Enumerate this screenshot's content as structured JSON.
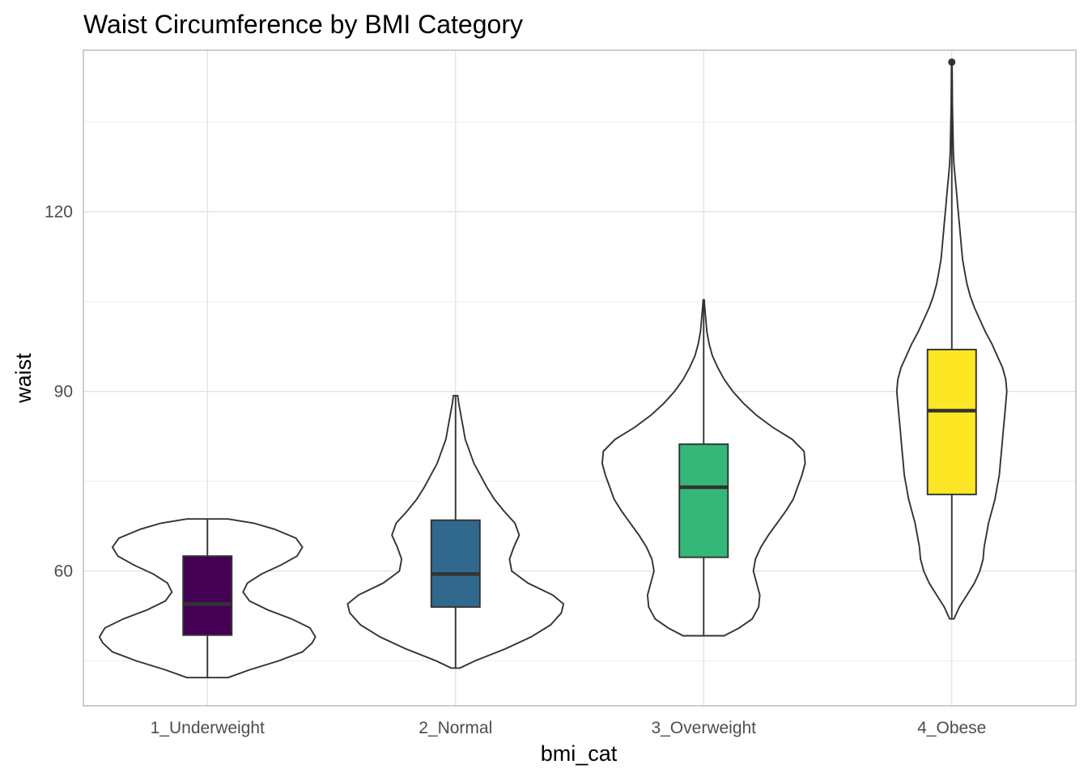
{
  "chart_data": {
    "type": "violin",
    "title": "Waist Circumference by BMI Category",
    "xlabel": "bmi_cat",
    "ylabel": "waist",
    "categories": [
      "1_Underweight",
      "2_Normal",
      "3_Overweight",
      "4_Obese"
    ],
    "ylim": [
      37.5,
      147
    ],
    "y_ticks": [
      60,
      90,
      120
    ],
    "y_tick_labels": [
      "60",
      "90",
      "120"
    ],
    "grid": true,
    "legend": "none",
    "groups": [
      {
        "category": "1_Underweight",
        "fill": "#440154",
        "min": 42.2,
        "q1": 49.3,
        "median": 54.5,
        "q3": 62.5,
        "max": 68.7,
        "outliers": [],
        "density": [
          [
            42.2,
            0.19
          ],
          [
            43.5,
            0.39
          ],
          [
            45.0,
            0.66
          ],
          [
            46.5,
            0.88
          ],
          [
            48.0,
            0.97
          ],
          [
            49.0,
            1.0
          ],
          [
            50.5,
            0.95
          ],
          [
            52.0,
            0.78
          ],
          [
            53.5,
            0.56
          ],
          [
            55.0,
            0.39
          ],
          [
            56.5,
            0.33
          ],
          [
            58.0,
            0.37
          ],
          [
            59.5,
            0.5
          ],
          [
            61.0,
            0.68
          ],
          [
            62.5,
            0.83
          ],
          [
            64.0,
            0.88
          ],
          [
            65.5,
            0.82
          ],
          [
            67.0,
            0.62
          ],
          [
            68.0,
            0.43
          ],
          [
            68.7,
            0.19
          ]
        ]
      },
      {
        "category": "2_Normal",
        "fill": "#31688e",
        "min": 43.8,
        "q1": 54.0,
        "median": 59.5,
        "q3": 68.5,
        "max": 89.3,
        "outliers": [],
        "density": [
          [
            43.8,
            0.04
          ],
          [
            45.0,
            0.18
          ],
          [
            47.0,
            0.46
          ],
          [
            49.0,
            0.7
          ],
          [
            51.0,
            0.88
          ],
          [
            53.0,
            0.98
          ],
          [
            54.5,
            1.0
          ],
          [
            56.0,
            0.9
          ],
          [
            58.0,
            0.67
          ],
          [
            60.0,
            0.52
          ],
          [
            62.0,
            0.5
          ],
          [
            64.0,
            0.54
          ],
          [
            66.0,
            0.59
          ],
          [
            68.0,
            0.55
          ],
          [
            70.0,
            0.45
          ],
          [
            72.0,
            0.36
          ],
          [
            74.0,
            0.29
          ],
          [
            76.0,
            0.23
          ],
          [
            78.0,
            0.17
          ],
          [
            80.0,
            0.13
          ],
          [
            82.0,
            0.09
          ],
          [
            84.0,
            0.07
          ],
          [
            86.0,
            0.05
          ],
          [
            88.0,
            0.03
          ],
          [
            89.3,
            0.02
          ]
        ]
      },
      {
        "category": "3_Overweight",
        "fill": "#35b779",
        "min": 49.2,
        "q1": 62.3,
        "median": 74.0,
        "q3": 81.2,
        "max": 105.3,
        "outliers": [],
        "density": [
          [
            49.2,
            0.19
          ],
          [
            50.5,
            0.33
          ],
          [
            52.0,
            0.45
          ],
          [
            54.0,
            0.51
          ],
          [
            56.0,
            0.52
          ],
          [
            58.0,
            0.49
          ],
          [
            60.0,
            0.46
          ],
          [
            62.0,
            0.48
          ],
          [
            64.0,
            0.53
          ],
          [
            66.0,
            0.6
          ],
          [
            68.0,
            0.68
          ],
          [
            70.0,
            0.76
          ],
          [
            72.0,
            0.83
          ],
          [
            74.0,
            0.87
          ],
          [
            76.0,
            0.91
          ],
          [
            78.0,
            0.94
          ],
          [
            80.0,
            0.93
          ],
          [
            82.0,
            0.82
          ],
          [
            84.0,
            0.64
          ],
          [
            86.0,
            0.49
          ],
          [
            88.0,
            0.37
          ],
          [
            90.0,
            0.27
          ],
          [
            92.0,
            0.19
          ],
          [
            94.0,
            0.13
          ],
          [
            96.0,
            0.08
          ],
          [
            98.0,
            0.05
          ],
          [
            100.0,
            0.03
          ],
          [
            102.0,
            0.02
          ],
          [
            104.0,
            0.01
          ],
          [
            105.3,
            0.005
          ]
        ]
      },
      {
        "category": "4_Obese",
        "fill": "#fde725",
        "min": 52.0,
        "q1": 72.8,
        "median": 86.8,
        "q3": 97.0,
        "max": 143.2,
        "outliers": [
          145.0
        ],
        "density": [
          [
            52.0,
            0.02
          ],
          [
            54.0,
            0.07
          ],
          [
            56.0,
            0.14
          ],
          [
            58.0,
            0.21
          ],
          [
            60.0,
            0.26
          ],
          [
            62.0,
            0.29
          ],
          [
            64.0,
            0.3
          ],
          [
            66.0,
            0.32
          ],
          [
            68.0,
            0.34
          ],
          [
            70.0,
            0.37
          ],
          [
            72.0,
            0.4
          ],
          [
            74.0,
            0.42
          ],
          [
            76.0,
            0.44
          ],
          [
            78.0,
            0.45
          ],
          [
            80.0,
            0.46
          ],
          [
            82.0,
            0.47
          ],
          [
            84.0,
            0.48
          ],
          [
            86.0,
            0.49
          ],
          [
            88.0,
            0.5
          ],
          [
            90.0,
            0.51
          ],
          [
            92.0,
            0.5
          ],
          [
            94.0,
            0.47
          ],
          [
            96.0,
            0.42
          ],
          [
            98.0,
            0.37
          ],
          [
            100.0,
            0.31
          ],
          [
            102.0,
            0.26
          ],
          [
            104.0,
            0.21
          ],
          [
            106.0,
            0.17
          ],
          [
            108.0,
            0.14
          ],
          [
            110.0,
            0.12
          ],
          [
            112.0,
            0.1
          ],
          [
            114.0,
            0.09
          ],
          [
            116.0,
            0.08
          ],
          [
            118.0,
            0.07
          ],
          [
            120.0,
            0.06
          ],
          [
            122.0,
            0.05
          ],
          [
            124.0,
            0.04
          ],
          [
            126.0,
            0.03
          ],
          [
            128.0,
            0.02
          ],
          [
            130.0,
            0.015
          ],
          [
            134.0,
            0.01
          ],
          [
            138.0,
            0.006
          ],
          [
            142.0,
            0.004
          ],
          [
            145.0,
            0.003
          ]
        ]
      }
    ]
  }
}
